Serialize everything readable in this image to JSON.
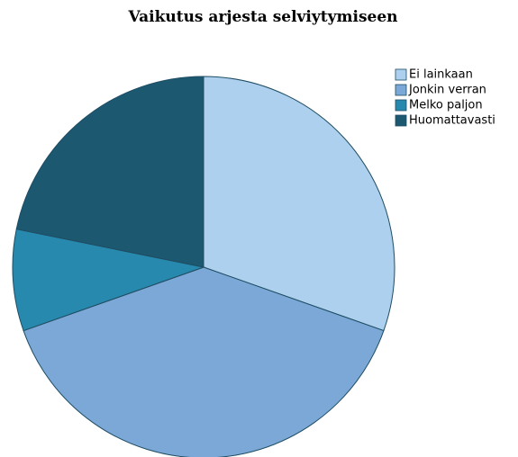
{
  "chart_data": {
    "type": "pie",
    "title": "Vaikutus arjesta selviytymiseen",
    "categories": [
      "Ei lainkaan",
      "Jonkin verran",
      "Melko paljon",
      "Huomattavasti"
    ],
    "values": [
      30.4,
      39.2,
      8.6,
      21.8
    ],
    "colors": [
      "#acd0ee",
      "#7ba8d6",
      "#2889ae",
      "#1c5870"
    ],
    "legend": "top-right"
  }
}
